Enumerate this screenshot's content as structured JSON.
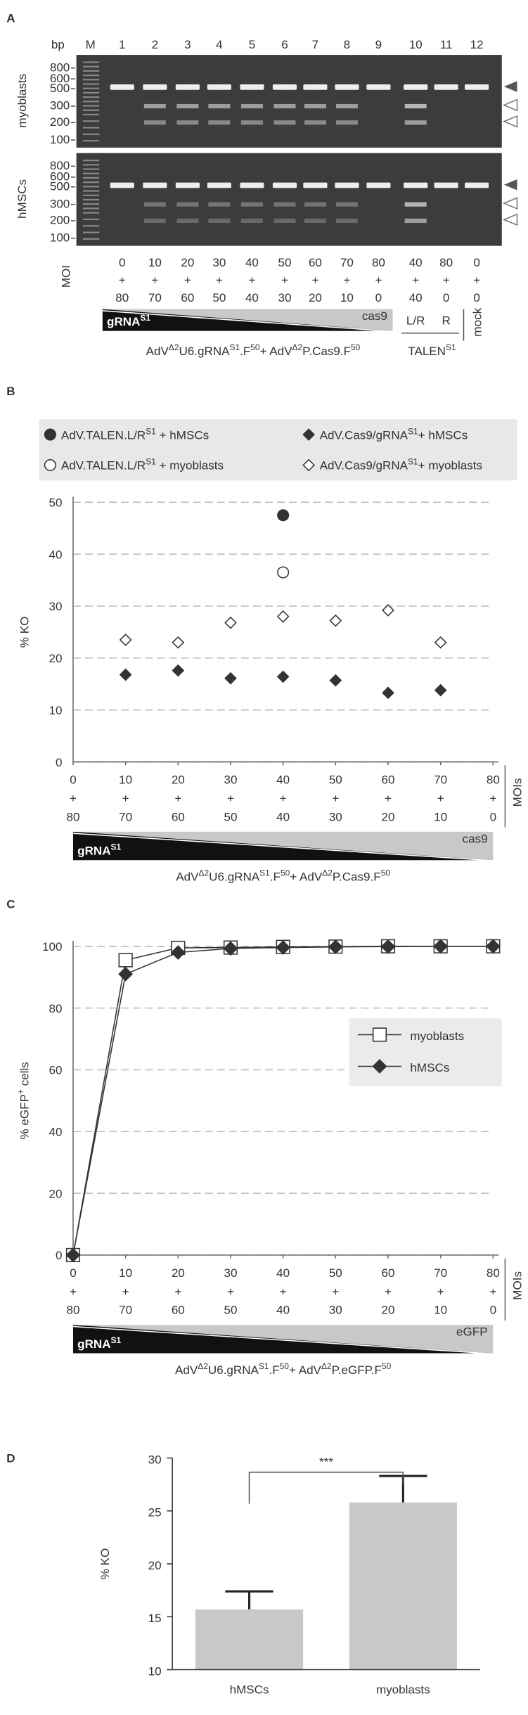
{
  "panel_a": {
    "label": "A",
    "bp_label": "bp",
    "marker_lane": "M",
    "lanes": [
      "1",
      "2",
      "3",
      "4",
      "5",
      "6",
      "7",
      "8",
      "9",
      "10",
      "11",
      "12"
    ],
    "rows": [
      {
        "name": "myoblasts",
        "ladder": [
          800,
          600,
          500,
          300,
          200,
          100
        ]
      },
      {
        "name": "hMSCs",
        "ladder": [
          800,
          600,
          500,
          300,
          200,
          100
        ]
      }
    ],
    "moi_label": "MOI",
    "moi_gRNA": [
      0,
      10,
      20,
      30,
      40,
      50,
      60,
      70,
      80,
      40,
      80,
      0
    ],
    "plus": [
      "+",
      "+",
      "+",
      "+",
      "+",
      "+",
      "+",
      "+",
      "+",
      "+",
      "+",
      "+"
    ],
    "moi_other": [
      80,
      70,
      60,
      50,
      40,
      30,
      20,
      10,
      0,
      40,
      0,
      0
    ],
    "wedge_left": [
      "gRNA",
      "S1"
    ],
    "wedge_right": "cas9",
    "lane_groups": [
      "L/R",
      "R",
      "mock"
    ],
    "caption": [
      "AdV",
      "Δ2",
      "U6.gRNA",
      "S1",
      ".F",
      "50",
      "+ AdV",
      "Δ2",
      "P.Cas9.F",
      "50"
    ],
    "talen_caption": [
      "TALEN",
      "S1"
    ]
  },
  "chart_data": [
    {
      "panel": "B",
      "type": "scatter",
      "ylabel": "% KO",
      "xlim": [
        0,
        80
      ],
      "xticks": [
        0,
        10,
        20,
        30,
        40,
        50,
        60,
        70,
        80
      ],
      "xticks_lower": [
        80,
        70,
        60,
        50,
        40,
        30,
        20,
        10,
        0
      ],
      "x_plus": "+",
      "x_axis_label": "MOIs",
      "ylim": [
        0,
        50
      ],
      "yticks": [
        0,
        10,
        20,
        30,
        40,
        50
      ],
      "grid": true,
      "legend": "top",
      "series": [
        {
          "name": [
            "AdV.TALEN.L/R",
            "S1",
            " + hMSCs"
          ],
          "marker": "circle",
          "filled": true,
          "color": "#333333",
          "x": [
            40
          ],
          "values": [
            47.5
          ]
        },
        {
          "name": [
            "AdV.Cas9/gRNA",
            "S1",
            "+ hMSCs"
          ],
          "marker": "diamond",
          "filled": true,
          "color": "#333333",
          "x": [
            10,
            20,
            30,
            40,
            50,
            60,
            70
          ],
          "values": [
            16.8,
            17.6,
            16.1,
            16.4,
            15.7,
            13.3,
            13.8
          ]
        },
        {
          "name": [
            "AdV.TALEN.L/R",
            "S1",
            " + myoblasts"
          ],
          "marker": "circle",
          "filled": false,
          "color": "#333333",
          "x": [
            40
          ],
          "values": [
            36.5
          ]
        },
        {
          "name": [
            "AdV.Cas9/gRNA",
            "S1",
            "+ myoblasts"
          ],
          "marker": "diamond",
          "filled": false,
          "color": "#333333",
          "x": [
            10,
            20,
            30,
            40,
            50,
            60,
            70
          ],
          "values": [
            23.5,
            23,
            26.8,
            28,
            27.2,
            29.2,
            23
          ]
        }
      ],
      "wedge": {
        "left": [
          "gRNA",
          "S1"
        ],
        "right": "cas9"
      },
      "caption": [
        "AdV",
        "Δ2",
        "U6.gRNA",
        "S1",
        ".F",
        "50",
        "+ AdV",
        "Δ2",
        "P.Cas9.F",
        "50"
      ]
    },
    {
      "panel": "C",
      "type": "line",
      "ylabel": [
        "% eGFP",
        "+",
        " cells"
      ],
      "xlim": [
        0,
        80
      ],
      "xticks": [
        0,
        10,
        20,
        30,
        40,
        50,
        60,
        70,
        80
      ],
      "xticks_lower": [
        80,
        70,
        60,
        50,
        40,
        30,
        20,
        10,
        0
      ],
      "x_plus": "+",
      "x_axis_label": "MOIs",
      "ylim": [
        0,
        100
      ],
      "yticks": [
        0,
        20,
        40,
        60,
        80,
        100
      ],
      "grid": true,
      "legend": "right",
      "series": [
        {
          "name": "myoblasts",
          "marker": "square",
          "filled": false,
          "color": "#333333",
          "x": [
            0,
            10,
            20,
            30,
            40,
            50,
            60,
            70,
            80
          ],
          "values": [
            0,
            95.5,
            99.5,
            99.6,
            99.8,
            99.9,
            100,
            100,
            100
          ]
        },
        {
          "name": "hMSCs",
          "marker": "diamond",
          "filled": true,
          "color": "#333333",
          "x": [
            0,
            10,
            20,
            30,
            40,
            50,
            60,
            70,
            80
          ],
          "values": [
            0,
            91,
            98,
            99.3,
            99.6,
            99.8,
            99.9,
            100,
            100
          ]
        }
      ],
      "wedge": {
        "left": [
          "gRNA",
          "S1"
        ],
        "right": "eGFP"
      },
      "caption": [
        "AdV",
        "Δ2",
        "U6.gRNA",
        "S1",
        ".F",
        "50",
        "+ AdV",
        "Δ2",
        "P.eGFP.F",
        "50"
      ]
    },
    {
      "panel": "D",
      "type": "bar",
      "ylabel": "% KO",
      "categories": [
        "hMSCs",
        "myoblasts"
      ],
      "values": [
        15.7,
        25.8
      ],
      "errors": [
        1.7,
        2.5
      ],
      "color": "#c8c8c8",
      "ylim": [
        10,
        30
      ],
      "yticks": [
        10,
        15,
        20,
        25,
        30
      ],
      "annotation": "***"
    }
  ]
}
